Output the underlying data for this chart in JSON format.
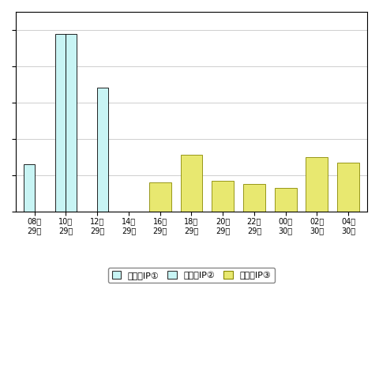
{
  "categories": [
    "08時\n29日",
    "10時\n29日",
    "12時\n29日",
    "14時\n29日",
    "16時\n29日",
    "18時\n29日",
    "20時\n29日",
    "22時\n29日",
    "00時\n30日",
    "02時\n30日",
    "04時\n30日"
  ],
  "series_ip1": {
    "name": "発信元IP①",
    "color": "#c8f4f4",
    "edgecolor": "#000000",
    "values": [
      130,
      490,
      0,
      0,
      0,
      0,
      0,
      0,
      0,
      0,
      0
    ]
  },
  "series_ip2": {
    "name": "発信元IP②",
    "color": "#c8f4f4",
    "edgecolor": "#000000",
    "values": [
      0,
      490,
      340,
      0,
      0,
      0,
      0,
      0,
      0,
      0,
      0
    ]
  },
  "series_ip3": {
    "name": "発信元IP③",
    "color": "#e8e870",
    "edgecolor": "#888800",
    "values": [
      0,
      0,
      0,
      0,
      80,
      155,
      85,
      75,
      65,
      150,
      135
    ]
  },
  "ylim": [
    0,
    550
  ],
  "yticks": [
    0,
    100,
    200,
    300,
    400,
    500
  ],
  "bar_width": 0.35,
  "figsize": [
    4.8,
    4.8
  ],
  "dpi": 100,
  "bg_color": "#ffffff",
  "grid_color": "#bbbbbb",
  "top_margin_color": "#ffffff"
}
